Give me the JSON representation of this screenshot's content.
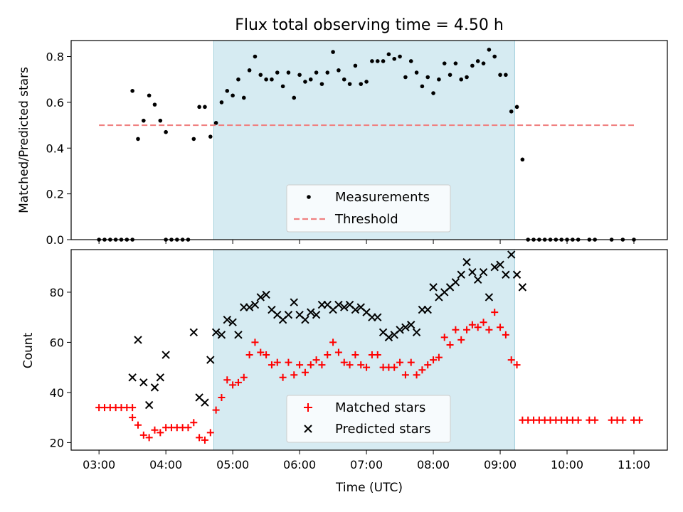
{
  "chart_data": [
    {
      "type": "scatter",
      "title": "Flux total observing time = 4.50 h",
      "xlabel": "",
      "ylabel": "Matched/Predicted stars",
      "xlim": [
        "02:35",
        "11:30"
      ],
      "ylim": [
        0,
        0.87
      ],
      "yticks": [
        "0.0",
        "0.2",
        "0.4",
        "0.6",
        "0.8"
      ],
      "shaded_region": [
        "04:43",
        "09:13"
      ],
      "shade_color": "#add8e6",
      "legend_position": "lower center",
      "series": [
        {
          "name": "Measurements",
          "color": "#000000",
          "marker": "dot",
          "points": [
            [
              "03:00",
              0
            ],
            [
              "03:05",
              0
            ],
            [
              "03:10",
              0
            ],
            [
              "03:15",
              0
            ],
            [
              "03:20",
              0
            ],
            [
              "03:25",
              0
            ],
            [
              "03:30",
              0
            ],
            [
              "03:30",
              0.65
            ],
            [
              "03:35",
              0.44
            ],
            [
              "03:40",
              0.52
            ],
            [
              "03:45",
              0.63
            ],
            [
              "03:50",
              0.59
            ],
            [
              "03:55",
              0.52
            ],
            [
              "04:00",
              0.47
            ],
            [
              "04:00",
              0
            ],
            [
              "04:05",
              0
            ],
            [
              "04:10",
              0
            ],
            [
              "04:15",
              0
            ],
            [
              "04:20",
              0
            ],
            [
              "04:25",
              0.44
            ],
            [
              "04:30",
              0.58
            ],
            [
              "04:35",
              0.58
            ],
            [
              "04:40",
              0.45
            ],
            [
              "04:45",
              0.51
            ],
            [
              "04:50",
              0.6
            ],
            [
              "04:55",
              0.65
            ],
            [
              "05:00",
              0.63
            ],
            [
              "05:05",
              0.7
            ],
            [
              "05:10",
              0.62
            ],
            [
              "05:15",
              0.74
            ],
            [
              "05:20",
              0.8
            ],
            [
              "05:25",
              0.72
            ],
            [
              "05:30",
              0.7
            ],
            [
              "05:35",
              0.7
            ],
            [
              "05:40",
              0.73
            ],
            [
              "05:45",
              0.67
            ],
            [
              "05:50",
              0.73
            ],
            [
              "05:55",
              0.62
            ],
            [
              "06:00",
              0.72
            ],
            [
              "06:05",
              0.69
            ],
            [
              "06:10",
              0.7
            ],
            [
              "06:15",
              0.73
            ],
            [
              "06:20",
              0.68
            ],
            [
              "06:25",
              0.73
            ],
            [
              "06:30",
              0.82
            ],
            [
              "06:35",
              0.74
            ],
            [
              "06:40",
              0.7
            ],
            [
              "06:45",
              0.68
            ],
            [
              "06:50",
              0.76
            ],
            [
              "06:55",
              0.68
            ],
            [
              "07:00",
              0.69
            ],
            [
              "07:05",
              0.78
            ],
            [
              "07:10",
              0.78
            ],
            [
              "07:15",
              0.78
            ],
            [
              "07:20",
              0.81
            ],
            [
              "07:25",
              0.79
            ],
            [
              "07:30",
              0.8
            ],
            [
              "07:35",
              0.71
            ],
            [
              "07:40",
              0.78
            ],
            [
              "07:45",
              0.73
            ],
            [
              "07:50",
              0.67
            ],
            [
              "07:55",
              0.71
            ],
            [
              "08:00",
              0.64
            ],
            [
              "08:05",
              0.7
            ],
            [
              "08:10",
              0.77
            ],
            [
              "08:15",
              0.72
            ],
            [
              "08:20",
              0.77
            ],
            [
              "08:25",
              0.7
            ],
            [
              "08:30",
              0.71
            ],
            [
              "08:35",
              0.76
            ],
            [
              "08:40",
              0.78
            ],
            [
              "08:45",
              0.77
            ],
            [
              "08:50",
              0.83
            ],
            [
              "08:55",
              0.8
            ],
            [
              "09:00",
              0.72
            ],
            [
              "09:05",
              0.72
            ],
            [
              "09:10",
              0.56
            ],
            [
              "09:15",
              0.58
            ],
            [
              "09:20",
              0.35
            ],
            [
              "09:25",
              0
            ],
            [
              "09:30",
              0
            ],
            [
              "09:35",
              0
            ],
            [
              "09:40",
              0
            ],
            [
              "09:45",
              0
            ],
            [
              "09:50",
              0
            ],
            [
              "09:55",
              0
            ],
            [
              "10:00",
              0
            ],
            [
              "10:05",
              0
            ],
            [
              "10:10",
              0
            ],
            [
              "10:20",
              0
            ],
            [
              "10:25",
              0
            ],
            [
              "10:40",
              0
            ],
            [
              "10:50",
              0
            ],
            [
              "11:00",
              0
            ]
          ]
        },
        {
          "name": "Threshold",
          "color": "#f08080",
          "marker": "dashed-line",
          "points": [
            [
              "03:00",
              0.5
            ],
            [
              "11:00",
              0.5
            ]
          ]
        }
      ]
    },
    {
      "type": "scatter",
      "title": "",
      "xlabel": "Time (UTC)",
      "ylabel": "Count",
      "xlim": [
        "02:35",
        "11:30"
      ],
      "ylim": [
        17,
        97
      ],
      "yticks": [
        "20",
        "40",
        "60",
        "80"
      ],
      "xticks": [
        "03:00",
        "04:00",
        "05:00",
        "06:00",
        "07:00",
        "08:00",
        "09:00",
        "10:00",
        "11:00"
      ],
      "shaded_region": [
        "04:43",
        "09:13"
      ],
      "shade_color": "#add8e6",
      "legend_position": "lower center",
      "series": [
        {
          "name": "Matched stars",
          "color": "#ff0000",
          "marker": "plus",
          "points": [
            [
              "03:00",
              34
            ],
            [
              "03:05",
              34
            ],
            [
              "03:10",
              34
            ],
            [
              "03:15",
              34
            ],
            [
              "03:20",
              34
            ],
            [
              "03:25",
              34
            ],
            [
              "03:30",
              34
            ],
            [
              "03:30",
              30
            ],
            [
              "03:35",
              27
            ],
            [
              "03:40",
              23
            ],
            [
              "03:45",
              22
            ],
            [
              "03:50",
              25
            ],
            [
              "03:55",
              24
            ],
            [
              "04:00",
              26
            ],
            [
              "04:05",
              26
            ],
            [
              "04:10",
              26
            ],
            [
              "04:15",
              26
            ],
            [
              "04:20",
              26
            ],
            [
              "04:25",
              28
            ],
            [
              "04:30",
              22
            ],
            [
              "04:35",
              21
            ],
            [
              "04:40",
              24
            ],
            [
              "04:45",
              33
            ],
            [
              "04:50",
              38
            ],
            [
              "04:55",
              45
            ],
            [
              "05:00",
              43
            ],
            [
              "05:05",
              44
            ],
            [
              "05:10",
              46
            ],
            [
              "05:15",
              55
            ],
            [
              "05:20",
              60
            ],
            [
              "05:25",
              56
            ],
            [
              "05:30",
              55
            ],
            [
              "05:35",
              51
            ],
            [
              "05:40",
              52
            ],
            [
              "05:45",
              46
            ],
            [
              "05:50",
              52
            ],
            [
              "05:55",
              47
            ],
            [
              "06:00",
              51
            ],
            [
              "06:05",
              48
            ],
            [
              "06:10",
              51
            ],
            [
              "06:15",
              53
            ],
            [
              "06:20",
              51
            ],
            [
              "06:25",
              55
            ],
            [
              "06:30",
              60
            ],
            [
              "06:35",
              56
            ],
            [
              "06:40",
              52
            ],
            [
              "06:45",
              51
            ],
            [
              "06:50",
              55
            ],
            [
              "06:55",
              51
            ],
            [
              "07:00",
              50
            ],
            [
              "07:05",
              55
            ],
            [
              "07:10",
              55
            ],
            [
              "07:15",
              50
            ],
            [
              "07:20",
              50
            ],
            [
              "07:25",
              50
            ],
            [
              "07:30",
              52
            ],
            [
              "07:35",
              47
            ],
            [
              "07:40",
              52
            ],
            [
              "07:45",
              47
            ],
            [
              "07:50",
              49
            ],
            [
              "07:55",
              51
            ],
            [
              "08:00",
              53
            ],
            [
              "08:05",
              54
            ],
            [
              "08:10",
              62
            ],
            [
              "08:15",
              59
            ],
            [
              "08:20",
              65
            ],
            [
              "08:25",
              61
            ],
            [
              "08:30",
              65
            ],
            [
              "08:35",
              67
            ],
            [
              "08:40",
              66
            ],
            [
              "08:45",
              68
            ],
            [
              "08:50",
              65
            ],
            [
              "08:55",
              72
            ],
            [
              "09:00",
              66
            ],
            [
              "09:05",
              63
            ],
            [
              "09:10",
              53
            ],
            [
              "09:15",
              51
            ],
            [
              "09:20",
              29
            ],
            [
              "09:25",
              29
            ],
            [
              "09:30",
              29
            ],
            [
              "09:35",
              29
            ],
            [
              "09:40",
              29
            ],
            [
              "09:45",
              29
            ],
            [
              "09:50",
              29
            ],
            [
              "09:55",
              29
            ],
            [
              "10:00",
              29
            ],
            [
              "10:05",
              29
            ],
            [
              "10:10",
              29
            ],
            [
              "10:20",
              29
            ],
            [
              "10:25",
              29
            ],
            [
              "10:40",
              29
            ],
            [
              "10:45",
              29
            ],
            [
              "10:50",
              29
            ],
            [
              "11:00",
              29
            ],
            [
              "11:05",
              29
            ]
          ]
        },
        {
          "name": "Predicted stars",
          "color": "#000000",
          "marker": "x",
          "points": [
            [
              "03:30",
              46
            ],
            [
              "03:35",
              61
            ],
            [
              "03:40",
              44
            ],
            [
              "03:45",
              35
            ],
            [
              "03:50",
              42
            ],
            [
              "03:55",
              46
            ],
            [
              "04:00",
              55
            ],
            [
              "04:25",
              64
            ],
            [
              "04:30",
              38
            ],
            [
              "04:35",
              36
            ],
            [
              "04:40",
              53
            ],
            [
              "04:45",
              64
            ],
            [
              "04:50",
              63
            ],
            [
              "04:55",
              69
            ],
            [
              "05:00",
              68
            ],
            [
              "05:05",
              63
            ],
            [
              "05:10",
              74
            ],
            [
              "05:15",
              74
            ],
            [
              "05:20",
              75
            ],
            [
              "05:25",
              78
            ],
            [
              "05:30",
              79
            ],
            [
              "05:35",
              73
            ],
            [
              "05:40",
              71
            ],
            [
              "05:45",
              69
            ],
            [
              "05:50",
              71
            ],
            [
              "05:55",
              76
            ],
            [
              "06:00",
              71
            ],
            [
              "06:05",
              69
            ],
            [
              "06:10",
              72
            ],
            [
              "06:15",
              71
            ],
            [
              "06:20",
              75
            ],
            [
              "06:25",
              75
            ],
            [
              "06:30",
              73
            ],
            [
              "06:35",
              75
            ],
            [
              "06:40",
              74
            ],
            [
              "06:45",
              75
            ],
            [
              "06:50",
              73
            ],
            [
              "06:55",
              74
            ],
            [
              "07:00",
              72
            ],
            [
              "07:05",
              70
            ],
            [
              "07:10",
              70
            ],
            [
              "07:15",
              64
            ],
            [
              "07:20",
              62
            ],
            [
              "07:25",
              63
            ],
            [
              "07:30",
              65
            ],
            [
              "07:35",
              66
            ],
            [
              "07:40",
              67
            ],
            [
              "07:45",
              64
            ],
            [
              "07:50",
              73
            ],
            [
              "07:55",
              73
            ],
            [
              "08:00",
              82
            ],
            [
              "08:05",
              78
            ],
            [
              "08:10",
              80
            ],
            [
              "08:15",
              82
            ],
            [
              "08:20",
              84
            ],
            [
              "08:25",
              87
            ],
            [
              "08:30",
              92
            ],
            [
              "08:35",
              88
            ],
            [
              "08:40",
              85
            ],
            [
              "08:45",
              88
            ],
            [
              "08:50",
              78
            ],
            [
              "08:55",
              90
            ],
            [
              "09:00",
              91
            ],
            [
              "09:05",
              87
            ],
            [
              "09:10",
              95
            ],
            [
              "09:15",
              87
            ],
            [
              "09:20",
              82
            ]
          ]
        }
      ]
    }
  ]
}
